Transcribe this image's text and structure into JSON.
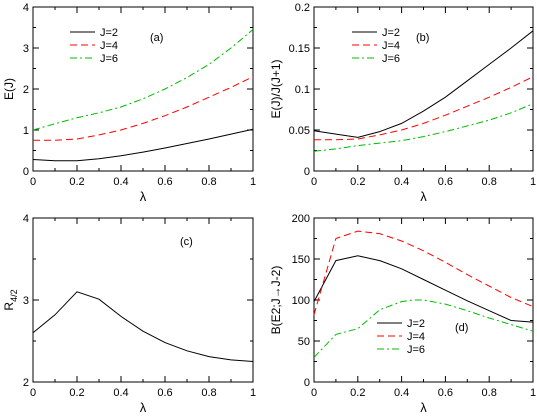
{
  "chart_data": [
    {
      "type": "line",
      "panel_label": "(a)",
      "xlabel": "λ",
      "ylabel": "E(J)",
      "xlim": [
        0,
        1
      ],
      "ylim": [
        0,
        4
      ],
      "xticks": [
        0,
        0.2,
        0.4,
        0.6,
        0.8,
        1
      ],
      "xtick_labels": [
        "0",
        "0.2",
        "0.4",
        "0.6",
        "0.8",
        "1"
      ],
      "yticks": [
        0,
        1,
        2,
        3,
        4
      ],
      "ytick_labels": [
        "0",
        "1",
        "2",
        "3",
        "4"
      ],
      "legend_position": "top-left",
      "series": [
        {
          "name": "J=2",
          "color": "#000000",
          "dash": "solid",
          "x": [
            0,
            0.1,
            0.2,
            0.3,
            0.4,
            0.5,
            0.6,
            0.7,
            0.8,
            0.9,
            1.0
          ],
          "y": [
            0.28,
            0.25,
            0.25,
            0.3,
            0.37,
            0.46,
            0.56,
            0.67,
            0.78,
            0.9,
            1.02
          ]
        },
        {
          "name": "J=4",
          "color": "#ff0000",
          "dash": "dashed",
          "x": [
            0,
            0.1,
            0.2,
            0.3,
            0.4,
            0.5,
            0.6,
            0.7,
            0.8,
            0.9,
            1.0
          ],
          "y": [
            0.75,
            0.75,
            0.78,
            0.88,
            1.0,
            1.16,
            1.35,
            1.56,
            1.8,
            2.04,
            2.3
          ]
        },
        {
          "name": "J=6",
          "color": "#00bb00",
          "dash": "dashdot",
          "x": [
            0,
            0.1,
            0.2,
            0.3,
            0.4,
            0.5,
            0.6,
            0.7,
            0.8,
            0.9,
            1.0
          ],
          "y": [
            1.0,
            1.15,
            1.3,
            1.42,
            1.56,
            1.76,
            2.0,
            2.28,
            2.6,
            3.0,
            3.45
          ]
        }
      ]
    },
    {
      "type": "line",
      "panel_label": "(b)",
      "xlabel": "λ",
      "ylabel": "E(J)/J(J+1)",
      "xlim": [
        0,
        1
      ],
      "ylim": [
        0,
        0.2
      ],
      "xticks": [
        0,
        0.2,
        0.4,
        0.6,
        0.8,
        1
      ],
      "xtick_labels": [
        "0",
        "0.2",
        "0.4",
        "0.6",
        "0.8",
        "1"
      ],
      "yticks": [
        0,
        0.05,
        0.1,
        0.15,
        0.2
      ],
      "ytick_labels": [
        "0",
        "0.05",
        "0.1",
        "0.15",
        "0.2"
      ],
      "legend_position": "top-left",
      "series": [
        {
          "name": "J=2",
          "color": "#000000",
          "dash": "solid",
          "x": [
            0,
            0.1,
            0.2,
            0.3,
            0.4,
            0.5,
            0.6,
            0.7,
            0.8,
            0.9,
            1.0
          ],
          "y": [
            0.049,
            0.045,
            0.041,
            0.048,
            0.058,
            0.073,
            0.09,
            0.11,
            0.13,
            0.15,
            0.171
          ]
        },
        {
          "name": "J=4",
          "color": "#ff0000",
          "dash": "dashed",
          "x": [
            0,
            0.1,
            0.2,
            0.3,
            0.4,
            0.5,
            0.6,
            0.7,
            0.8,
            0.9,
            1.0
          ],
          "y": [
            0.038,
            0.038,
            0.039,
            0.044,
            0.05,
            0.058,
            0.068,
            0.079,
            0.09,
            0.102,
            0.115
          ]
        },
        {
          "name": "J=6",
          "color": "#00bb00",
          "dash": "dashdot",
          "x": [
            0,
            0.1,
            0.2,
            0.3,
            0.4,
            0.5,
            0.6,
            0.7,
            0.8,
            0.9,
            1.0
          ],
          "y": [
            0.024,
            0.027,
            0.031,
            0.034,
            0.037,
            0.042,
            0.048,
            0.055,
            0.062,
            0.071,
            0.082
          ]
        }
      ]
    },
    {
      "type": "line",
      "panel_label": "(c)",
      "xlabel": "λ",
      "ylabel": "R",
      "ylabel_sub": "4/2",
      "xlim": [
        0,
        1
      ],
      "ylim": [
        2,
        4
      ],
      "xticks": [
        0,
        0.2,
        0.4,
        0.6,
        0.8,
        1
      ],
      "xtick_labels": [
        "0",
        "0.2",
        "0.4",
        "0.6",
        "0.8",
        "1"
      ],
      "yticks": [
        2,
        3,
        4
      ],
      "ytick_labels": [
        "2",
        "3",
        "4"
      ],
      "series": [
        {
          "color": "#000000",
          "dash": "solid",
          "x": [
            0,
            0.1,
            0.2,
            0.3,
            0.4,
            0.5,
            0.6,
            0.7,
            0.8,
            0.9,
            1.0
          ],
          "y": [
            2.6,
            2.82,
            3.1,
            3.01,
            2.8,
            2.62,
            2.48,
            2.38,
            2.31,
            2.27,
            2.25
          ]
        }
      ]
    },
    {
      "type": "line",
      "panel_label": "(d)",
      "xlabel": "λ",
      "ylabel": "B(E2;J→J-2)",
      "xlim": [
        0,
        1
      ],
      "ylim": [
        0,
        200
      ],
      "xticks": [
        0,
        0.2,
        0.4,
        0.6,
        0.8,
        1
      ],
      "xtick_labels": [
        "0",
        "0.2",
        "0.4",
        "0.6",
        "0.8",
        "1"
      ],
      "yticks": [
        0,
        50,
        100,
        150,
        200
      ],
      "ytick_labels": [
        "0",
        "50",
        "100",
        "150",
        "200"
      ],
      "legend_position": "bottom-center",
      "series": [
        {
          "name": "J=2",
          "color": "#000000",
          "dash": "solid",
          "x": [
            0,
            0.1,
            0.2,
            0.3,
            0.4,
            0.5,
            0.6,
            0.7,
            0.8,
            0.9,
            1.0
          ],
          "y": [
            98,
            148,
            154,
            148,
            138,
            125,
            112,
            99,
            87,
            75,
            73
          ]
        },
        {
          "name": "J=4",
          "color": "#ff0000",
          "dash": "dashed",
          "x": [
            0,
            0.1,
            0.2,
            0.3,
            0.4,
            0.5,
            0.6,
            0.7,
            0.8,
            0.9,
            1.0
          ],
          "y": [
            82,
            175,
            184,
            181,
            172,
            160,
            146,
            131,
            117,
            103,
            92
          ]
        },
        {
          "name": "J=6",
          "color": "#00bb00",
          "dash": "dashdot",
          "x": [
            0,
            0.1,
            0.2,
            0.3,
            0.4,
            0.45,
            0.5,
            0.6,
            0.7,
            0.8,
            0.9,
            1.0
          ],
          "y": [
            30,
            58,
            65,
            88,
            98,
            100,
            100,
            95,
            87,
            78,
            70,
            62
          ]
        }
      ]
    }
  ]
}
